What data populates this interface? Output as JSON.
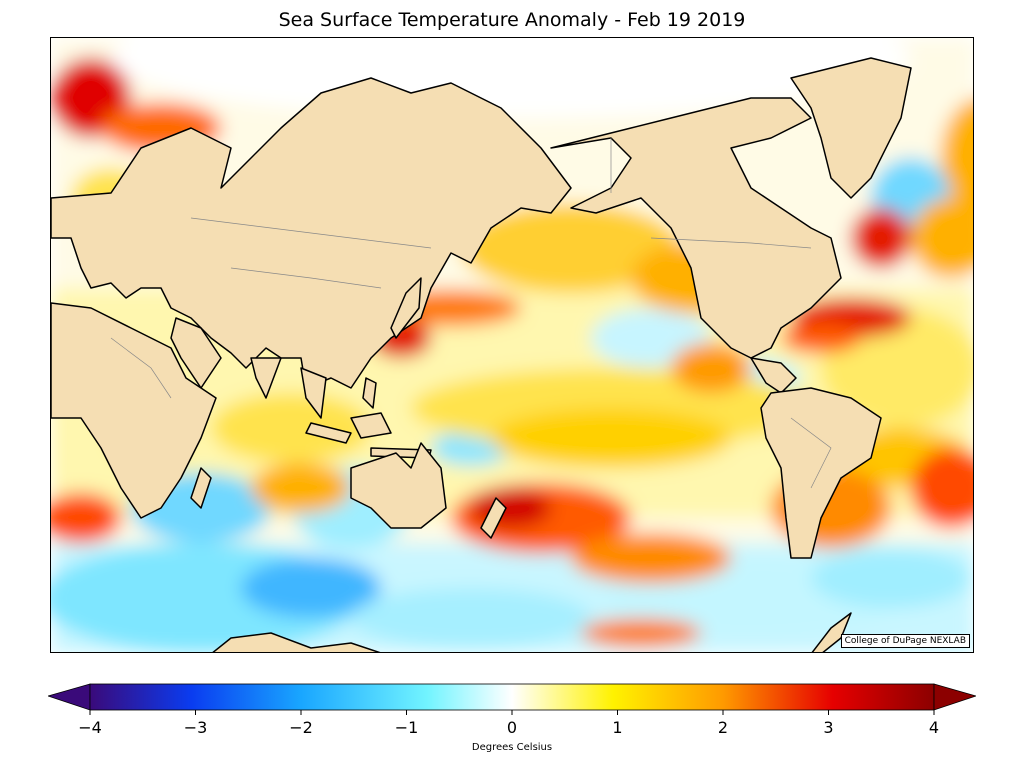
{
  "title": "Sea Surface Temperature Anomaly - Feb 19 2019",
  "credit": "College of DuPage NEXLAB",
  "colorbar": {
    "label": "Degrees Celsius",
    "min": -4,
    "max": 4,
    "extend": "both",
    "ticks": [
      "−4",
      "−3",
      "−2",
      "−1",
      "0",
      "1",
      "2",
      "3",
      "4"
    ],
    "colors": {
      "cold_extreme": "#3a0a7a",
      "cold_strong": "#0a3cf0",
      "cold": "#19a6ff",
      "cool": "#72f4ff",
      "neutral": "#ffffff",
      "warm": "#fff200",
      "warmer": "#ff9a00",
      "hot": "#e60000",
      "hot_extreme": "#8c0000"
    }
  },
  "map": {
    "land_color": "#f5deb3",
    "coast_color": "#000000",
    "border_color": "#888888"
  }
}
